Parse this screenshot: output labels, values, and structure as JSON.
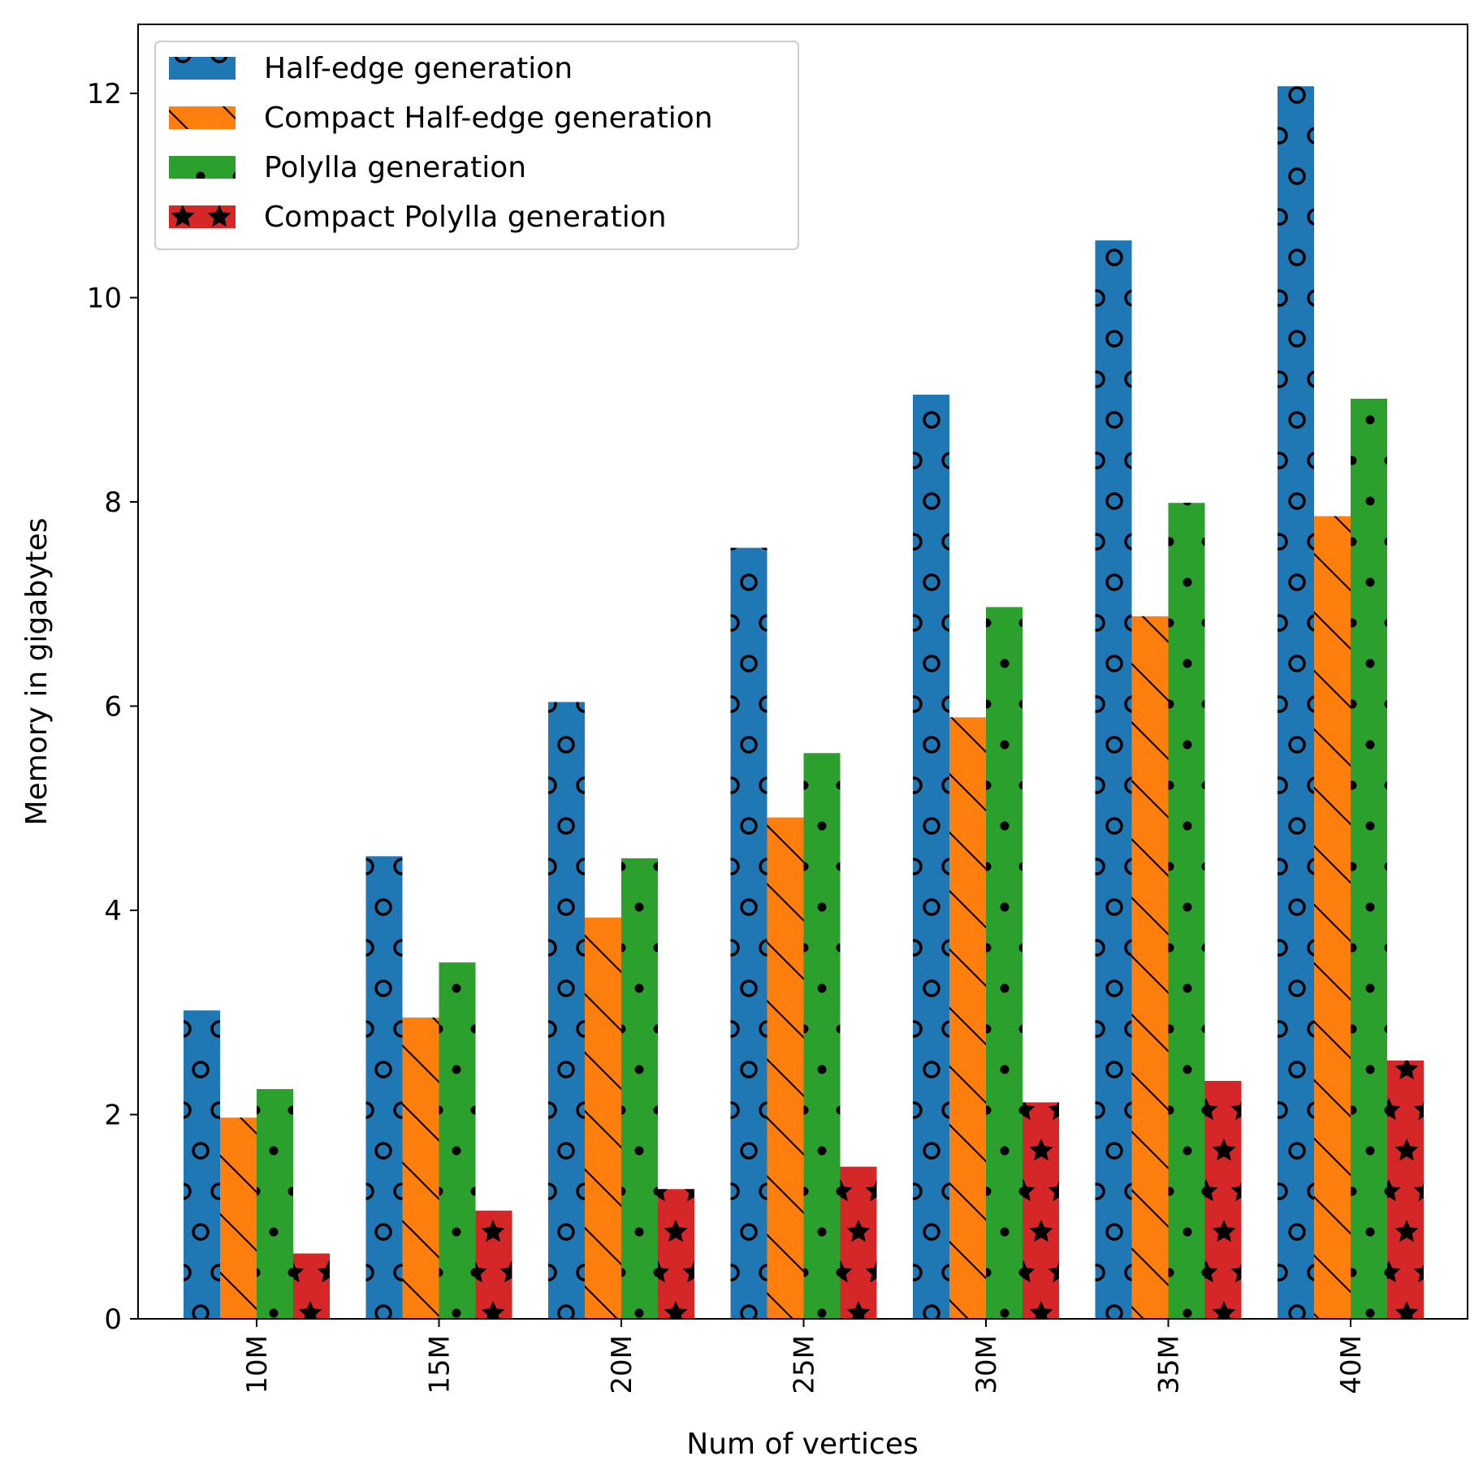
{
  "chart_data": {
    "type": "bar",
    "title": "",
    "xlabel": "Num of vertices",
    "ylabel": "Memory in gigabytes",
    "categories": [
      "10M",
      "15M",
      "20M",
      "25M",
      "30M",
      "35M",
      "40M"
    ],
    "ylim": [
      0,
      12.7
    ],
    "yticks": [
      "0",
      "2",
      "4",
      "6",
      "8",
      "10",
      "12"
    ],
    "grid": false,
    "legend_position": "top-left",
    "series": [
      {
        "name": "Half-edge generation",
        "color": "#1f77b4",
        "hatch": "circles",
        "values": [
          3.02,
          4.53,
          6.04,
          7.55,
          9.05,
          10.56,
          12.07
        ]
      },
      {
        "name": "Compact Half-edge generation",
        "color": "#ff7f0e",
        "hatch": "diagonal-lines",
        "values": [
          1.97,
          2.95,
          3.93,
          4.91,
          5.89,
          6.88,
          7.86
        ]
      },
      {
        "name": "Polylla generation",
        "color": "#2ca02c",
        "hatch": "dots",
        "values": [
          2.25,
          3.49,
          4.51,
          5.54,
          6.97,
          7.99,
          9.01
        ]
      },
      {
        "name": "Compact Polylla generation",
        "color": "#d62728",
        "hatch": "stars",
        "values": [
          0.64,
          1.06,
          1.27,
          1.49,
          2.12,
          2.33,
          2.53
        ]
      }
    ]
  }
}
